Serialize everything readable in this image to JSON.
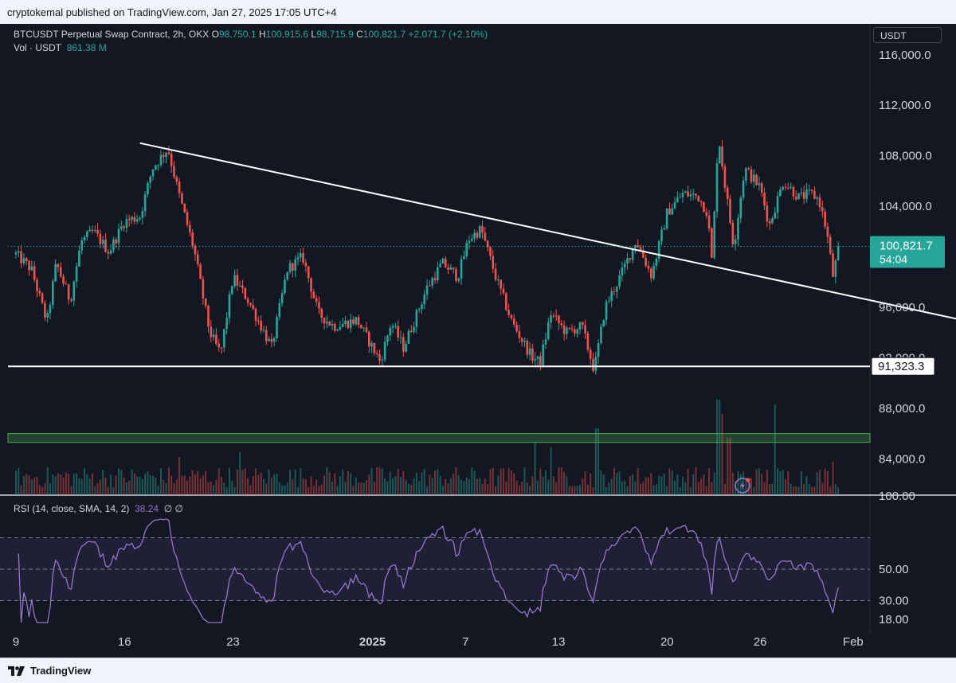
{
  "header": {
    "published": "cryptokemal published on TradingView.com, Jan 27, 2025 17:05 UTC+4"
  },
  "legend": {
    "symbol": "BTCUSDT Perpetual Swap Contract, 2h, OKX",
    "open_label": "O",
    "open": "98,750.1",
    "high_label": "H",
    "high": "100,915.6",
    "low_label": "L",
    "low": "98,715.9",
    "close_label": "C",
    "close": "100,821.7",
    "change": "+2,071.7 (+2.10%)",
    "vol_label": "Vol · USDT",
    "vol": "861.38 M",
    "rsi_label": "RSI (14, close, SMA, 14, 2)",
    "rsi_value": "38.24",
    "rsi_extra": "∅ ∅"
  },
  "currency": "USDT",
  "footer": {
    "brand": "TradingView"
  },
  "colors": {
    "background": "#131722",
    "up": "#26a69a",
    "down": "#ef5350",
    "rsi": "#9575cd",
    "support_zone": "#4caf50",
    "trendline": "#ffffff"
  },
  "chart_data": [
    {
      "type": "candlestick",
      "title": "BTCUSDT Perpetual Swap Contract, 2h, OKX",
      "ylim": [
        81500,
        117500
      ],
      "y_ticks": [
        "116,000.0",
        "112,000.0",
        "108,000.0",
        "104,000.0",
        "96,000.0",
        "92,000.0",
        "88,000.0",
        "84,000.0"
      ],
      "x_ticks": [
        "9",
        "16",
        "23",
        "2025",
        "7",
        "13",
        "20",
        "26",
        "Feb"
      ],
      "x_tick_days": [
        0,
        7,
        14,
        23,
        29,
        35,
        42,
        48,
        54
      ],
      "last_price": {
        "value": 100821.7,
        "label": "100,821.7",
        "countdown": "54:04"
      },
      "horizontal_line": {
        "value": 91323.3,
        "label": "91,323.3"
      },
      "support_zone": [
        85300,
        86000
      ],
      "trendline": {
        "from": {
          "day": 8,
          "price": 109000
        },
        "to": {
          "day": 61,
          "price": 95000
        }
      },
      "path": [
        [
          0,
          100200
        ],
        [
          1,
          99000
        ],
        [
          2,
          94800
        ],
        [
          2.6,
          99500
        ],
        [
          3.5,
          96500
        ],
        [
          4.2,
          101200
        ],
        [
          5,
          102000
        ],
        [
          6,
          100400
        ],
        [
          7,
          102800
        ],
        [
          8,
          103200
        ],
        [
          8.8,
          107000
        ],
        [
          9.8,
          108600
        ],
        [
          10.5,
          105000
        ],
        [
          11.5,
          100500
        ],
        [
          12.5,
          94000
        ],
        [
          13.2,
          92300
        ],
        [
          14,
          98400
        ],
        [
          15,
          96500
        ],
        [
          16.5,
          92800
        ],
        [
          17.5,
          99000
        ],
        [
          18.5,
          100000
        ],
        [
          19.5,
          95500
        ],
        [
          20.5,
          94500
        ],
        [
          22,
          95000
        ],
        [
          23.5,
          91700
        ],
        [
          24.2,
          94800
        ],
        [
          25,
          92800
        ],
        [
          26.5,
          97500
        ],
        [
          27.5,
          99500
        ],
        [
          28.5,
          98400
        ],
        [
          29.2,
          101400
        ],
        [
          30,
          102200
        ],
        [
          31,
          98200
        ],
        [
          32,
          94800
        ],
        [
          33.2,
          92200
        ],
        [
          33.8,
          91600
        ],
        [
          34.5,
          95500
        ],
        [
          35.5,
          94000
        ],
        [
          36.5,
          94500
        ],
        [
          37.3,
          91000
        ],
        [
          38,
          96000
        ],
        [
          39,
          98500
        ],
        [
          40,
          101300
        ],
        [
          41,
          98500
        ],
        [
          42,
          103500
        ],
        [
          43,
          105000
        ],
        [
          44,
          104800
        ],
        [
          44.6,
          103500
        ],
        [
          44.9,
          99500
        ],
        [
          45.3,
          109800
        ],
        [
          45.7,
          106000
        ],
        [
          46.3,
          100800
        ],
        [
          47,
          107000
        ],
        [
          48,
          105500
        ],
        [
          48.6,
          102500
        ],
        [
          49.5,
          106000
        ],
        [
          50.5,
          104700
        ],
        [
          51.3,
          105000
        ],
        [
          51.8,
          104500
        ],
        [
          52.3,
          102000
        ],
        [
          52.7,
          98500
        ],
        [
          53.1,
          100821.7
        ]
      ],
      "volume_spikes": [
        [
          45.3,
          1.0
        ],
        [
          49,
          0.95
        ],
        [
          37.5,
          0.7
        ],
        [
          33.5,
          0.55
        ],
        [
          46,
          0.6
        ],
        [
          14.5,
          0.45
        ],
        [
          34.5,
          0.5
        ],
        [
          10.5,
          0.4
        ],
        [
          45.6,
          0.85
        ],
        [
          52.7,
          0.35
        ]
      ]
    },
    {
      "type": "line",
      "title": "RSI (14, close, SMA, 14, 2)",
      "ylim": [
        13,
        87
      ],
      "y_ticks": [
        "100.00",
        "50.00",
        "30.00",
        "18.00"
      ],
      "y_tick_values": [
        100,
        50,
        30,
        18
      ],
      "band": [
        30,
        70
      ],
      "midline": 50,
      "last_value": 38.24
    }
  ]
}
